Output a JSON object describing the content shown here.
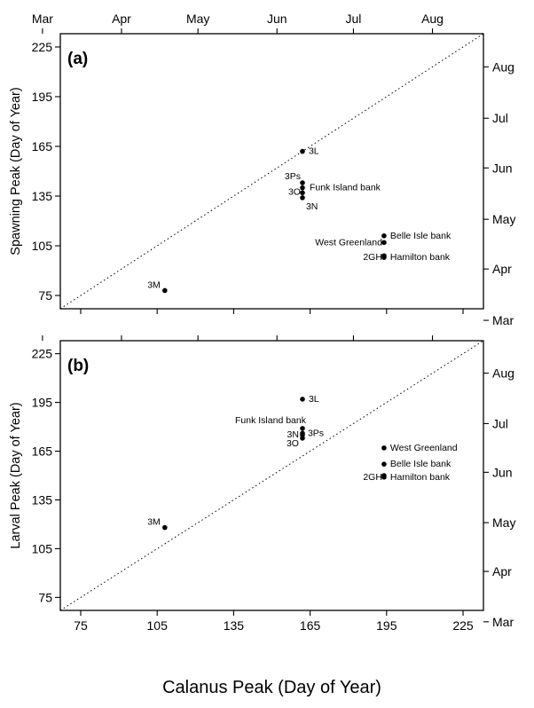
{
  "chart_data": [
    {
      "type": "scatter",
      "panel_label": "(a)",
      "ylabel": "Spawning Peak (Day of Year)",
      "xlabel": "",
      "xlim": [
        67,
        233
      ],
      "ylim": [
        67,
        233
      ],
      "yticks": [
        75,
        105,
        135,
        165,
        195,
        225
      ],
      "xticks_bottom": [],
      "month_ticks": [
        {
          "label": "Mar",
          "day": 60
        },
        {
          "label": "Apr",
          "day": 91
        },
        {
          "label": "May",
          "day": 121
        },
        {
          "label": "Jun",
          "day": 152
        },
        {
          "label": "Jul",
          "day": 182
        },
        {
          "label": "Aug",
          "day": 213
        }
      ],
      "top_month_axis": true,
      "right_month_axis": true,
      "reference_line": "y=x dotted",
      "points": [
        {
          "label": "3L",
          "x": 162,
          "y": 162
        },
        {
          "label": "3Ps",
          "x": 162,
          "y": 143
        },
        {
          "label": "Funk Island bank",
          "x": 162,
          "y": 140
        },
        {
          "label": "3O",
          "x": 162,
          "y": 137
        },
        {
          "label": "3N",
          "x": 162,
          "y": 134
        },
        {
          "label": "Belle Isle bank",
          "x": 194,
          "y": 111
        },
        {
          "label": "West Greenland",
          "x": 194,
          "y": 107
        },
        {
          "label": "2GH",
          "x": 194,
          "y": 99
        },
        {
          "label": "Hamilton bank",
          "x": 194,
          "y": 98
        },
        {
          "label": "3M",
          "x": 108,
          "y": 78
        }
      ]
    },
    {
      "type": "scatter",
      "panel_label": "(b)",
      "ylabel": "Larval Peak (Day of Year)",
      "xlabel": "Calanus Peak (Day of Year)",
      "xlim": [
        67,
        233
      ],
      "ylim": [
        67,
        233
      ],
      "yticks": [
        75,
        105,
        135,
        165,
        195,
        225
      ],
      "xticks_bottom": [
        75,
        105,
        135,
        165,
        195,
        225
      ],
      "month_ticks": [
        {
          "label": "Mar",
          "day": 60
        },
        {
          "label": "Apr",
          "day": 91
        },
        {
          "label": "May",
          "day": 121
        },
        {
          "label": "Jun",
          "day": 152
        },
        {
          "label": "Jul",
          "day": 182
        },
        {
          "label": "Aug",
          "day": 213
        }
      ],
      "top_month_axis": false,
      "right_month_axis": true,
      "reference_line": "y=x dotted",
      "points": [
        {
          "label": "3L",
          "x": 162,
          "y": 197
        },
        {
          "label": "Funk Island bank",
          "x": 162,
          "y": 179
        },
        {
          "label": "3Ps",
          "x": 162,
          "y": 176
        },
        {
          "label": "3N",
          "x": 162,
          "y": 175
        },
        {
          "label": "3O",
          "x": 162,
          "y": 173
        },
        {
          "label": "West Greenland",
          "x": 194,
          "y": 167
        },
        {
          "label": "Belle Isle bank",
          "x": 194,
          "y": 157
        },
        {
          "label": "2GH",
          "x": 194,
          "y": 150
        },
        {
          "label": "Hamilton bank",
          "x": 194,
          "y": 149
        },
        {
          "label": "3M",
          "x": 108,
          "y": 118
        }
      ]
    }
  ]
}
